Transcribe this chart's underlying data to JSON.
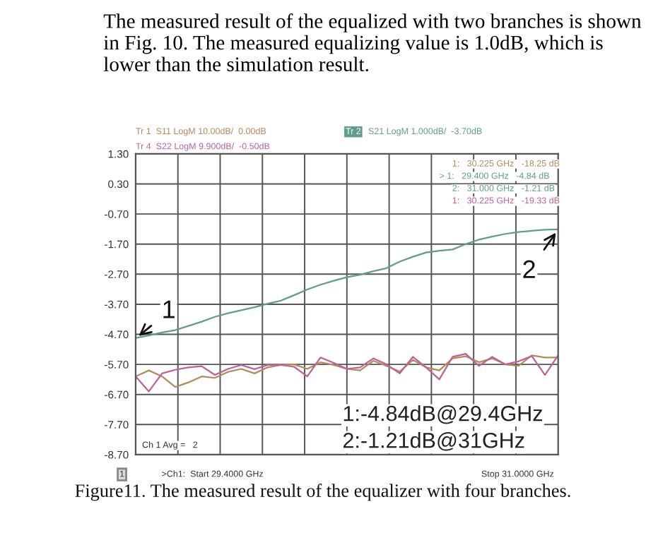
{
  "chart_data": {
    "type": "line",
    "annotations": [
      "The measured result of the equalized with two branches is shown in Fig. 10. The measured equalizing value is 1.0dB, which is lower than the simulation result.",
      "Tr 1  S11 LogM 10.00dB/  0.00dB",
      "Tr 4  S22 LogM 9.900dB/  -0.50dB",
      "Tr 2",
      "S21 LogM 1.000dB/  -3.70dB",
      "1:   30.225 GHz   -18.25 dB",
      "> 1:   29.400 GHz   -4.84 dB",
      "2:   31.000 GHz   -1.21 dB",
      "1:   30.225 GHz   -19.33 dB",
      {
        "text": "1",
        "y": -4.84
      },
      {
        "text": "2",
        "y": -1.21
      },
      "1:-4.84dB@29.4GHz",
      "2:-1.21dB@31GHz",
      "Ch 1 Avg =   2",
      "1",
      ">Ch1:  Start 29.4000 GHz",
      "Stop 31.0000 GHz",
      "Figure11. The measured result of the equalizer with four branches."
    ],
    "categories": [
      null,
      null,
      null,
      null,
      null,
      null,
      null,
      null,
      null,
      null,
      null,
      null,
      null,
      null,
      null,
      null,
      null,
      null,
      null,
      null,
      null,
      null,
      null,
      null,
      null,
      null,
      null,
      null,
      null,
      null,
      null,
      null,
      null
    ],
    "series": [
      {
        "color": "#5f9e8c",
        "values": [
          -4.82,
          -4.74,
          -4.64,
          -4.56,
          -4.42,
          -4.28,
          -4.12,
          -4.0,
          -3.9,
          -3.8,
          -3.68,
          -3.58,
          -3.4,
          -3.21,
          -3.05,
          -2.92,
          -2.8,
          -2.72,
          -2.6,
          -2.5,
          -2.28,
          -2.12,
          -1.98,
          -1.92,
          -1.88,
          -1.7,
          -1.55,
          -1.45,
          -1.36,
          -1.3,
          -1.26,
          -1.22,
          -1.21
        ]
      },
      {
        "color": "#b58a5a",
        "values": [
          -6.1,
          -5.9,
          -6.1,
          -6.45,
          -6.3,
          -6.1,
          -6.15,
          -5.95,
          -5.85,
          -6.0,
          -5.8,
          -5.72,
          -5.7,
          -5.85,
          -5.63,
          -5.72,
          -5.85,
          -5.9,
          -5.58,
          -5.75,
          -5.94,
          -5.55,
          -5.8,
          -5.9,
          -5.5,
          -5.43,
          -5.63,
          -5.5,
          -5.7,
          -5.75,
          -5.4,
          -5.47,
          -5.47
        ]
      },
      {
        "color": "#c0609a",
        "values": [
          -6.1,
          -6.6,
          -6.0,
          -5.88,
          -5.8,
          -5.76,
          -6.05,
          -5.85,
          -5.72,
          -5.86,
          -5.72,
          -5.72,
          -5.78,
          -6.1,
          -5.47,
          -5.65,
          -5.85,
          -5.8,
          -5.5,
          -5.7,
          -6.0,
          -5.45,
          -5.8,
          -6.2,
          -5.45,
          -5.35,
          -5.75,
          -5.45,
          -5.7,
          -5.6,
          -5.42,
          -6.05,
          -5.4
        ]
      }
    ],
    "ylim": [
      -8.7,
      1.3
    ],
    "yticks": [
      {
        "value": 1.3,
        "label": "1.30"
      },
      {
        "value": 0.3,
        "label": "0.30"
      },
      {
        "value": -0.7,
        "label": "-0.70"
      },
      {
        "value": -1.7,
        "label": "-1.70"
      },
      {
        "value": -2.7,
        "label": "-2.70"
      },
      {
        "value": -3.7,
        "label": "-3.70"
      },
      {
        "value": -4.7,
        "label": "-4.70"
      },
      {
        "value": -5.7,
        "label": "-5.70"
      },
      {
        "value": -6.7,
        "label": "-6.70"
      },
      {
        "value": -7.7,
        "label": "-7.70"
      },
      {
        "value": -8.7,
        "label": "-8.70"
      }
    ],
    "tick_labels": "y",
    "grid": true,
    "line_style": "solid"
  }
}
